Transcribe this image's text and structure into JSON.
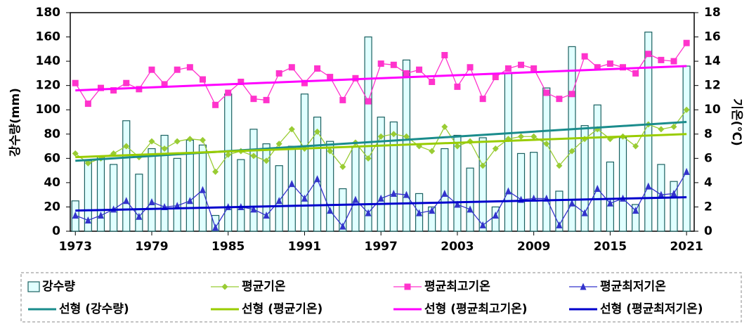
{
  "chart_data": {
    "type": "combo",
    "y_label": "강수량(mm)",
    "y2_label": "기온(℃)",
    "x": [
      1973,
      1974,
      1975,
      1976,
      1977,
      1978,
      1979,
      1980,
      1981,
      1982,
      1983,
      1984,
      1985,
      1986,
      1987,
      1988,
      1989,
      1990,
      1991,
      1992,
      1993,
      1994,
      1995,
      1996,
      1997,
      1998,
      1999,
      2000,
      2001,
      2002,
      2003,
      2004,
      2005,
      2006,
      2007,
      2008,
      2009,
      2010,
      2011,
      2012,
      2013,
      2014,
      2015,
      2016,
      2017,
      2018,
      2019,
      2020,
      2021
    ],
    "xlim": [
      1972.6,
      2021.6
    ],
    "xticks": [
      1973,
      1979,
      1985,
      1991,
      1997,
      2003,
      2009,
      2015,
      2021
    ],
    "ylim": [
      0,
      180
    ],
    "yticks": [
      0,
      20,
      40,
      60,
      80,
      100,
      120,
      140,
      160,
      180
    ],
    "y2lim": [
      0,
      18
    ],
    "y2ticks": [
      0,
      2,
      4,
      6,
      8,
      10,
      12,
      14,
      16,
      18
    ],
    "series": [
      {
        "name": "강수량",
        "type": "bar",
        "color": "#e0ffff",
        "edge": "#1a6060",
        "axis": "y",
        "values": [
          25,
          58,
          62,
          55,
          91,
          47,
          68,
          79,
          60,
          75,
          71,
          13,
          113,
          59,
          84,
          72,
          54,
          70,
          113,
          94,
          74,
          35,
          70,
          160,
          94,
          90,
          141,
          31,
          20,
          68,
          79,
          52,
          77,
          20,
          130,
          64,
          65,
          118,
          33,
          152,
          87,
          104,
          57,
          77,
          22,
          164,
          55,
          41,
          136
        ]
      },
      {
        "name": "평균기온",
        "type": "line",
        "marker": "diamond",
        "color": "#99cc33",
        "axis": "y2",
        "values": [
          6.4,
          5.6,
          6.0,
          6.4,
          7.0,
          6.1,
          7.4,
          6.8,
          7.4,
          7.6,
          7.5,
          4.9,
          6.3,
          6.6,
          6.2,
          5.8,
          7.2,
          8.4,
          6.8,
          8.2,
          6.6,
          5.3,
          7.3,
          6.0,
          7.8,
          8.0,
          7.8,
          7.0,
          6.6,
          8.6,
          7.0,
          7.4,
          5.4,
          6.8,
          7.6,
          7.8,
          7.8,
          7.2,
          5.4,
          6.6,
          7.6,
          8.4,
          7.6,
          7.8,
          7.0,
          8.8,
          8.4,
          8.6,
          10.0
        ]
      },
      {
        "name": "평균최고기온",
        "type": "line",
        "marker": "square",
        "color": "#ff33cc",
        "axis": "y2",
        "values": [
          12.2,
          10.5,
          11.8,
          11.6,
          12.2,
          11.7,
          13.3,
          12.1,
          13.3,
          13.5,
          12.5,
          10.4,
          11.4,
          12.3,
          10.9,
          10.8,
          13.0,
          13.5,
          12.2,
          13.4,
          12.7,
          10.8,
          12.6,
          10.7,
          13.8,
          13.7,
          13.0,
          13.3,
          12.3,
          14.5,
          11.9,
          13.5,
          10.9,
          12.7,
          13.4,
          13.7,
          13.4,
          11.4,
          10.9,
          11.3,
          14.4,
          13.5,
          13.8,
          13.5,
          13.0,
          14.6,
          14.1,
          14.0,
          15.5
        ]
      },
      {
        "name": "평균최저기온",
        "type": "line",
        "marker": "triangle",
        "color": "#3333cc",
        "axis": "y2",
        "values": [
          1.3,
          0.9,
          1.3,
          1.8,
          2.5,
          1.2,
          2.4,
          2.0,
          2.1,
          2.5,
          3.4,
          0.3,
          2.0,
          2.0,
          1.8,
          1.3,
          2.5,
          3.9,
          2.7,
          4.3,
          1.7,
          0.4,
          2.6,
          1.5,
          2.7,
          3.1,
          3.0,
          1.5,
          1.7,
          3.1,
          2.2,
          1.8,
          0.5,
          1.3,
          3.3,
          2.6,
          2.7,
          2.7,
          0.5,
          2.3,
          1.5,
          3.5,
          2.3,
          2.7,
          1.7,
          3.7,
          3.0,
          3.1,
          4.9
        ]
      },
      {
        "name": "선형 (강수량)",
        "type": "trend",
        "color": "#1a8c8c",
        "axis": "y",
        "x": [
          1973,
          2021
        ],
        "values": [
          58,
          90
        ]
      },
      {
        "name": "선형 (평균기온)",
        "type": "trend",
        "color": "#99cc00",
        "axis": "y2",
        "x": [
          1973,
          2021
        ],
        "values": [
          6.1,
          8.0
        ]
      },
      {
        "name": "선형 (평균최고기온)",
        "type": "trend",
        "color": "#ff00ff",
        "axis": "y2",
        "x": [
          1973,
          2021
        ],
        "values": [
          11.6,
          13.6
        ]
      },
      {
        "name": "선형 (평균최저기온)",
        "type": "trend",
        "color": "#0000cc",
        "axis": "y2",
        "x": [
          1973,
          2021
        ],
        "values": [
          1.7,
          2.8
        ]
      }
    ]
  }
}
